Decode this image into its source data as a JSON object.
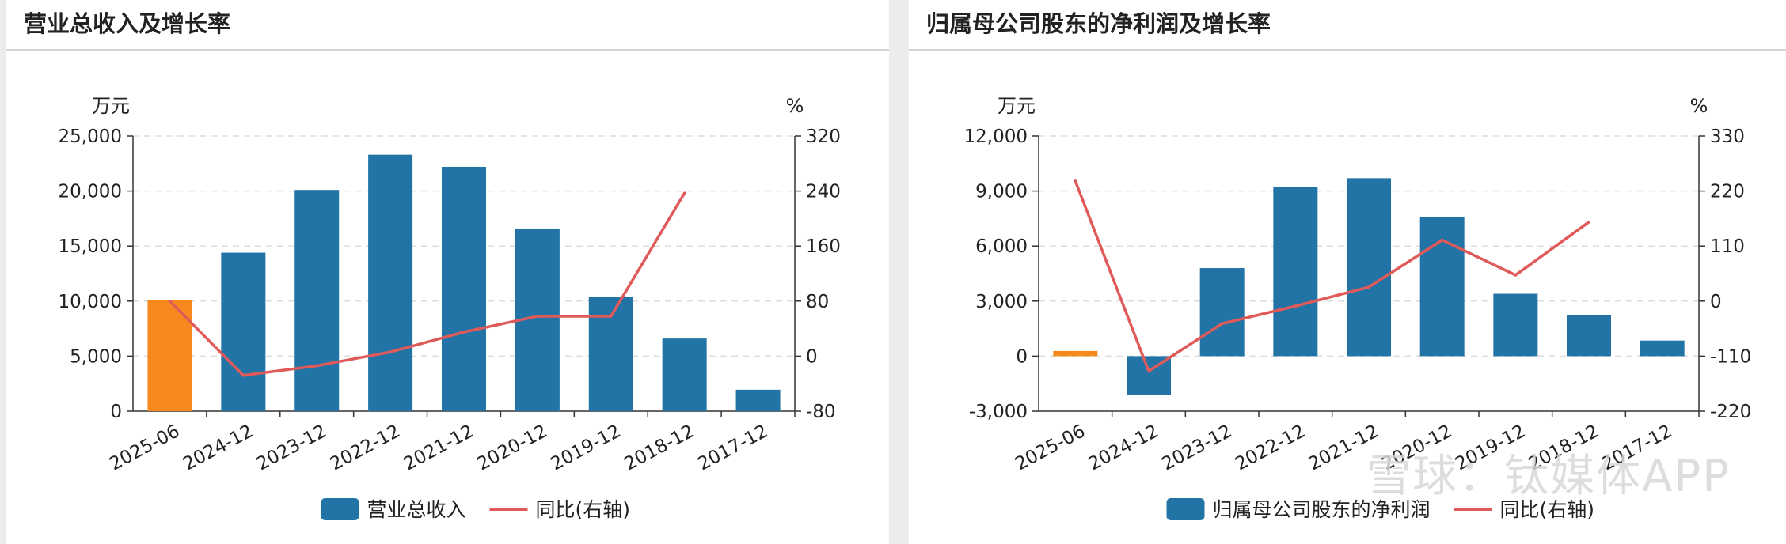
{
  "colors": {
    "bar": "#2374a6",
    "bar_highlight": "#f5891e",
    "line": "#e05a5a",
    "grid": "#dddddd",
    "axis": "#333333"
  },
  "watermark": "雪球：钛媒体APP",
  "panels": [
    {
      "title": "营业总收入及增长率",
      "chart_data": {
        "type": "bar+line",
        "categories": [
          "2025-06",
          "2024-12",
          "2023-12",
          "2022-12",
          "2021-12",
          "2020-12",
          "2019-12",
          "2018-12",
          "2017-12"
        ],
        "series": [
          {
            "name": "营业总收入",
            "type": "bar",
            "axis": "left",
            "values": [
              10100,
              14400,
              20100,
              23300,
              22200,
              16600,
              10400,
              6600,
              1950
            ]
          },
          {
            "name": "同比(右轴)",
            "type": "line",
            "axis": "right",
            "values": [
              80,
              -28,
              -14,
              6,
              35,
              58,
              58,
              237,
              null
            ]
          }
        ],
        "left_axis": {
          "unit": "万元",
          "min": 0,
          "max": 25000,
          "ticks": [
            "0",
            "5,000",
            "10,000",
            "15,000",
            "20,000",
            "25,000"
          ]
        },
        "right_axis": {
          "unit": "%",
          "min": -80,
          "max": 320,
          "ticks": [
            "-80",
            "0",
            "80",
            "160",
            "240",
            "320"
          ]
        },
        "highlight_first_bar": true,
        "grid": true,
        "legend_position": "bottom"
      }
    },
    {
      "title": "归属母公司股东的净利润及增长率",
      "chart_data": {
        "type": "bar+line",
        "categories": [
          "2025-06",
          "2024-12",
          "2023-12",
          "2022-12",
          "2021-12",
          "2020-12",
          "2019-12",
          "2018-12",
          "2017-12"
        ],
        "series": [
          {
            "name": "归属母公司股东的净利润",
            "type": "bar",
            "axis": "left",
            "values": [
              280,
              -2100,
              4800,
              9200,
              9700,
              7600,
              3400,
              2250,
              850
            ]
          },
          {
            "name": "同比(右轴)",
            "type": "line",
            "axis": "right",
            "values": [
              240,
              -140,
              -45,
              -10,
              28,
              122,
              52,
              158,
              null
            ]
          }
        ],
        "left_axis": {
          "unit": "万元",
          "min": -3000,
          "max": 12000,
          "ticks": [
            "-3,000",
            "0",
            "3,000",
            "6,000",
            "9,000",
            "12,000"
          ]
        },
        "right_axis": {
          "unit": "%",
          "min": -220,
          "max": 330,
          "ticks": [
            "-220",
            "-110",
            "0",
            "110",
            "220",
            "330"
          ]
        },
        "highlight_first_bar": true,
        "grid": true,
        "legend_position": "bottom"
      }
    }
  ]
}
